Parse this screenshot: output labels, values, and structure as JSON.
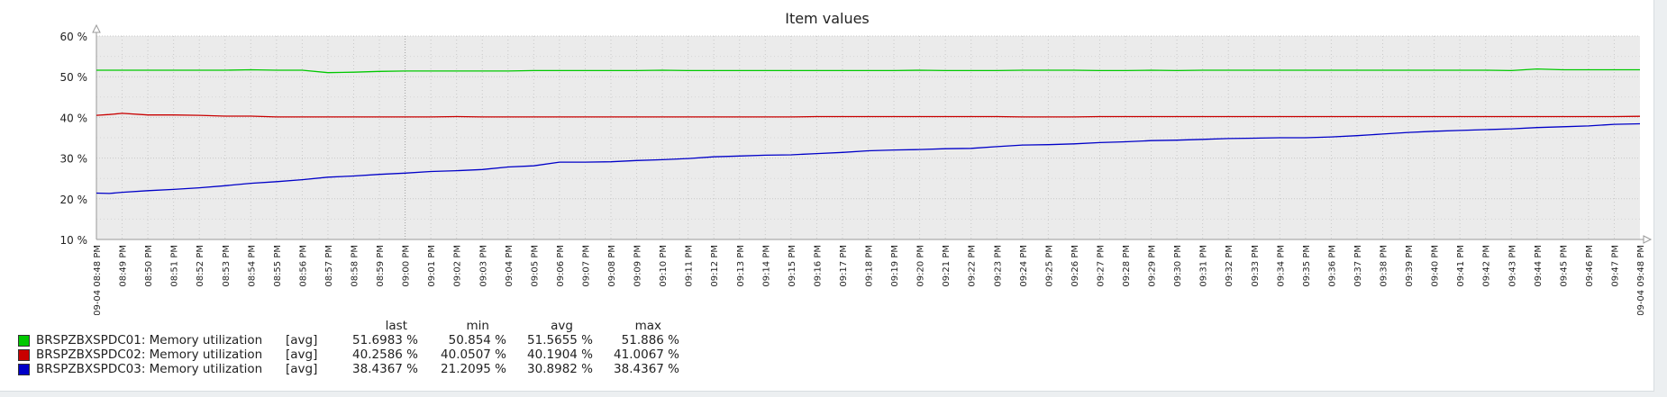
{
  "chart_data": {
    "type": "line",
    "title": "Item values",
    "y_axis": {
      "min": 10,
      "max": 60,
      "ticks": [
        10,
        20,
        30,
        40,
        50,
        60
      ],
      "tick_labels": [
        "10 %",
        "20 %",
        "30 %",
        "40 %",
        "50 %",
        "60 %"
      ],
      "unit": "%"
    },
    "x_axis": {
      "start_label": "09-04 08:48 PM",
      "end_label": "09-04 09:48 PM",
      "highlight_label": "09:00 PM",
      "tick_labels": [
        "08:49 PM",
        "08:50 PM",
        "08:51 PM",
        "08:52 PM",
        "08:53 PM",
        "08:54 PM",
        "08:55 PM",
        "08:56 PM",
        "08:57 PM",
        "08:58 PM",
        "08:59 PM",
        "09:00 PM",
        "09:01 PM",
        "09:02 PM",
        "09:03 PM",
        "09:04 PM",
        "09:05 PM",
        "09:06 PM",
        "09:07 PM",
        "09:08 PM",
        "09:09 PM",
        "09:10 PM",
        "09:11 PM",
        "09:12 PM",
        "09:13 PM",
        "09:14 PM",
        "09:15 PM",
        "09:16 PM",
        "09:17 PM",
        "09:18 PM",
        "09:19 PM",
        "09:20 PM",
        "09:21 PM",
        "09:22 PM",
        "09:23 PM",
        "09:24 PM",
        "09:25 PM",
        "09:26 PM",
        "09:27 PM",
        "09:28 PM",
        "09:29 PM",
        "09:30 PM",
        "09:31 PM",
        "09:32 PM",
        "09:33 PM",
        "09:34 PM",
        "09:35 PM",
        "09:36 PM",
        "09:37 PM",
        "09:38 PM",
        "09:39 PM",
        "09:40 PM",
        "09:41 PM",
        "09:42 PM",
        "09:43 PM",
        "09:44 PM",
        "09:45 PM",
        "09:46 PM",
        "09:47 PM"
      ]
    },
    "grid": true,
    "series": [
      {
        "name": "BRSPZBXSPDC01: Memory utilization",
        "color": "#00c800",
        "points": [
          [
            0,
            51.6
          ],
          [
            0.5,
            51.6
          ],
          [
            1,
            51.6
          ],
          [
            2,
            51.6
          ],
          [
            3,
            51.6
          ],
          [
            4,
            51.6
          ],
          [
            5,
            51.6
          ],
          [
            6,
            51.7
          ],
          [
            7,
            51.6
          ],
          [
            8,
            51.6
          ],
          [
            9,
            51.0
          ],
          [
            10,
            51.1
          ],
          [
            11,
            51.3
          ],
          [
            12,
            51.4
          ],
          [
            13,
            51.4
          ],
          [
            14,
            51.4
          ],
          [
            15,
            51.4
          ],
          [
            16,
            51.4
          ],
          [
            17,
            51.5
          ],
          [
            18,
            51.5
          ],
          [
            19,
            51.5
          ],
          [
            20,
            51.5
          ],
          [
            21,
            51.5
          ],
          [
            22,
            51.6
          ],
          [
            23,
            51.5
          ],
          [
            24,
            51.5
          ],
          [
            25,
            51.5
          ],
          [
            26,
            51.5
          ],
          [
            27,
            51.5
          ],
          [
            28,
            51.5
          ],
          [
            29,
            51.5
          ],
          [
            30,
            51.5
          ],
          [
            31,
            51.5
          ],
          [
            32,
            51.6
          ],
          [
            33,
            51.5
          ],
          [
            34,
            51.5
          ],
          [
            35,
            51.5
          ],
          [
            36,
            51.6
          ],
          [
            37,
            51.6
          ],
          [
            38,
            51.6
          ],
          [
            39,
            51.5
          ],
          [
            40,
            51.5
          ],
          [
            41,
            51.6
          ],
          [
            42,
            51.5
          ],
          [
            43,
            51.6
          ],
          [
            44,
            51.6
          ],
          [
            45,
            51.6
          ],
          [
            46,
            51.6
          ],
          [
            47,
            51.6
          ],
          [
            48,
            51.6
          ],
          [
            49,
            51.6
          ],
          [
            50,
            51.6
          ],
          [
            51,
            51.6
          ],
          [
            52,
            51.6
          ],
          [
            53,
            51.6
          ],
          [
            54,
            51.6
          ],
          [
            55,
            51.5
          ],
          [
            56,
            51.9
          ],
          [
            57,
            51.7
          ],
          [
            58,
            51.7
          ],
          [
            59,
            51.7
          ],
          [
            60,
            51.7
          ]
        ]
      },
      {
        "name": "BRSPZBXSPDC02: Memory utilization",
        "color": "#c80000",
        "points": [
          [
            0,
            40.5
          ],
          [
            0.5,
            40.7
          ],
          [
            1,
            41.0
          ],
          [
            2,
            40.6
          ],
          [
            3,
            40.6
          ],
          [
            4,
            40.5
          ],
          [
            5,
            40.3
          ],
          [
            6,
            40.3
          ],
          [
            7,
            40.1
          ],
          [
            8,
            40.1
          ],
          [
            9,
            40.1
          ],
          [
            10,
            40.1
          ],
          [
            11,
            40.1
          ],
          [
            12,
            40.1
          ],
          [
            13,
            40.1
          ],
          [
            14,
            40.2
          ],
          [
            15,
            40.1
          ],
          [
            16,
            40.1
          ],
          [
            17,
            40.1
          ],
          [
            18,
            40.1
          ],
          [
            19,
            40.1
          ],
          [
            20,
            40.1
          ],
          [
            21,
            40.1
          ],
          [
            22,
            40.1
          ],
          [
            23,
            40.1
          ],
          [
            24,
            40.1
          ],
          [
            25,
            40.1
          ],
          [
            26,
            40.1
          ],
          [
            27,
            40.1
          ],
          [
            28,
            40.2
          ],
          [
            29,
            40.2
          ],
          [
            30,
            40.2
          ],
          [
            31,
            40.2
          ],
          [
            32,
            40.2
          ],
          [
            33,
            40.2
          ],
          [
            34,
            40.2
          ],
          [
            35,
            40.2
          ],
          [
            36,
            40.1
          ],
          [
            37,
            40.1
          ],
          [
            38,
            40.1
          ],
          [
            39,
            40.2
          ],
          [
            40,
            40.2
          ],
          [
            41,
            40.2
          ],
          [
            42,
            40.2
          ],
          [
            43,
            40.2
          ],
          [
            44,
            40.2
          ],
          [
            45,
            40.2
          ],
          [
            46,
            40.2
          ],
          [
            47,
            40.2
          ],
          [
            48,
            40.2
          ],
          [
            49,
            40.2
          ],
          [
            50,
            40.2
          ],
          [
            51,
            40.2
          ],
          [
            52,
            40.2
          ],
          [
            53,
            40.2
          ],
          [
            54,
            40.2
          ],
          [
            55,
            40.2
          ],
          [
            56,
            40.2
          ],
          [
            57,
            40.2
          ],
          [
            58,
            40.2
          ],
          [
            59,
            40.2
          ],
          [
            60,
            40.26
          ]
        ]
      },
      {
        "name": "BRSPZBXSPDC03: Memory utilization",
        "color": "#0000c8",
        "points": [
          [
            0,
            21.4
          ],
          [
            0.5,
            21.3
          ],
          [
            1,
            21.6
          ],
          [
            2,
            22.0
          ],
          [
            3,
            22.3
          ],
          [
            4,
            22.7
          ],
          [
            5,
            23.2
          ],
          [
            6,
            23.8
          ],
          [
            7,
            24.2
          ],
          [
            8,
            24.7
          ],
          [
            9,
            25.3
          ],
          [
            10,
            25.6
          ],
          [
            11,
            26.0
          ],
          [
            12,
            26.3
          ],
          [
            13,
            26.7
          ],
          [
            14,
            26.9
          ],
          [
            15,
            27.2
          ],
          [
            16,
            27.8
          ],
          [
            17,
            28.1
          ],
          [
            18,
            29.0
          ],
          [
            19,
            29.0
          ],
          [
            20,
            29.1
          ],
          [
            21,
            29.4
          ],
          [
            22,
            29.6
          ],
          [
            23,
            29.9
          ],
          [
            24,
            30.3
          ],
          [
            25,
            30.5
          ],
          [
            26,
            30.7
          ],
          [
            27,
            30.8
          ],
          [
            28,
            31.1
          ],
          [
            29,
            31.4
          ],
          [
            30,
            31.8
          ],
          [
            31,
            32.0
          ],
          [
            32,
            32.1
          ],
          [
            33,
            32.3
          ],
          [
            34,
            32.4
          ],
          [
            35,
            32.8
          ],
          [
            36,
            33.2
          ],
          [
            37,
            33.3
          ],
          [
            38,
            33.5
          ],
          [
            39,
            33.8
          ],
          [
            40,
            34.0
          ],
          [
            41,
            34.3
          ],
          [
            42,
            34.4
          ],
          [
            43,
            34.6
          ],
          [
            44,
            34.8
          ],
          [
            45,
            34.9
          ],
          [
            46,
            35.0
          ],
          [
            47,
            35.0
          ],
          [
            48,
            35.2
          ],
          [
            49,
            35.5
          ],
          [
            50,
            35.9
          ],
          [
            51,
            36.3
          ],
          [
            52,
            36.6
          ],
          [
            53,
            36.8
          ],
          [
            54,
            37.0
          ],
          [
            55,
            37.2
          ],
          [
            56,
            37.5
          ],
          [
            57,
            37.7
          ],
          [
            58,
            37.9
          ],
          [
            59,
            38.3
          ],
          [
            60,
            38.44
          ]
        ]
      }
    ]
  },
  "legend": {
    "headers": {
      "last": "last",
      "min": "min",
      "avg": "avg",
      "max": "max"
    },
    "rows": [
      {
        "name": "BRSPZBXSPDC01: Memory utilization",
        "func": "[avg]",
        "last": "51.6983 %",
        "min": "50.854 %",
        "avg": "51.5655 %",
        "max": "51.886 %",
        "color": "#00c800"
      },
      {
        "name": "BRSPZBXSPDC02: Memory utilization",
        "func": "[avg]",
        "last": "40.2586 %",
        "min": "40.0507 %",
        "avg": "40.1904 %",
        "max": "41.0067 %",
        "color": "#c80000"
      },
      {
        "name": "BRSPZBXSPDC03: Memory utilization",
        "func": "[avg]",
        "last": "38.4367 %",
        "min": "21.2095 %",
        "avg": "30.8982 %",
        "max": "38.4367 %",
        "color": "#0000c8"
      }
    ]
  },
  "colors": {
    "plot_background": "#ebebeb",
    "grid": "#c8c8c8",
    "highlight_label": "#dc0000"
  }
}
